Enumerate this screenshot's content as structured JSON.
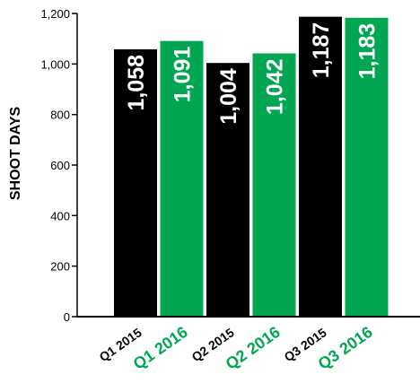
{
  "chart_data": {
    "type": "bar",
    "ylabel": "SHOOT DAYS",
    "ylim": [
      0,
      1200
    ],
    "yticks": [
      "0",
      "200",
      "400",
      "600",
      "800",
      "1,000",
      "1,200"
    ],
    "ytick_values": [
      0,
      200,
      400,
      600,
      800,
      1000,
      1200
    ],
    "categories": [
      "Q1 2015",
      "Q1 2016",
      "Q2 2015",
      "Q2 2016",
      "Q3 2015",
      "Q3 2016"
    ],
    "values": [
      1058,
      1091,
      1004,
      1042,
      1187,
      1183
    ],
    "value_labels": [
      "1,058",
      "1,091",
      "1,004",
      "1,042",
      "1,187",
      "1,183"
    ],
    "grid": false,
    "colors": {
      "2015": "#000000",
      "2016": "#00a651",
      "bar_label": "#ffffff",
      "axis": "#000000"
    }
  }
}
